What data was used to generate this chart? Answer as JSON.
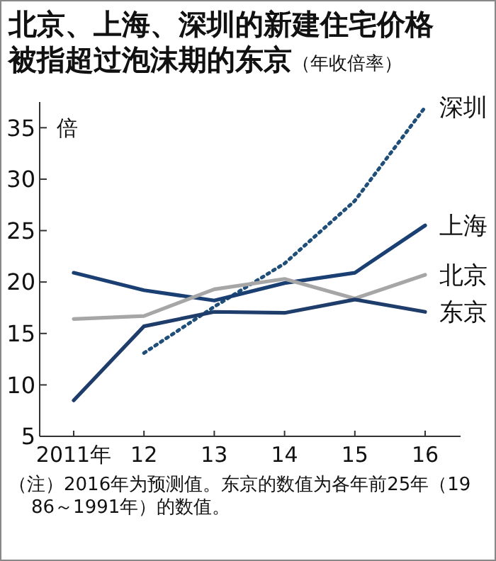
{
  "chart_data": {
    "type": "line",
    "title": "北京、上海、深圳的新建住宅价格被指超过泡沫期的东京",
    "subtitle": "（年收倍率）",
    "ylabel": "倍",
    "categories": [
      "2011年",
      "12",
      "13",
      "14",
      "15",
      "16"
    ],
    "series": [
      {
        "name": "深圳",
        "color": "#1f4e79",
        "line_style": "dotted",
        "values": [
          null,
          13.1,
          17.6,
          21.8,
          27.9,
          37.0
        ]
      },
      {
        "name": "上海",
        "color": "#1a3f73",
        "values": [
          20.9,
          19.2,
          18.2,
          19.9,
          20.9,
          25.5
        ]
      },
      {
        "name": "北京",
        "color": "#a6a6a6",
        "values": [
          16.4,
          16.7,
          19.3,
          20.3,
          18.4,
          20.7
        ]
      },
      {
        "name": "东京",
        "color": "#1f3d6b",
        "values": [
          8.5,
          15.7,
          17.1,
          17.0,
          18.3,
          17.1
        ]
      }
    ],
    "ylim": [
      5,
      37.5
    ],
    "yticks": [
      5,
      10,
      15,
      20,
      25,
      30,
      35
    ],
    "grid": false,
    "legend": false,
    "marker": "none",
    "line_style": "solid",
    "annotations": [
      "（注）2016年为预测值。东京的数值为各年前25年（1986～1991年）的数值。"
    ]
  }
}
